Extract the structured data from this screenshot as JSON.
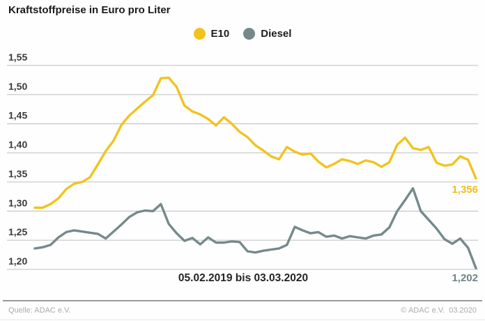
{
  "title": "Kraftstoffpreise in Euro pro Liter",
  "footer": {
    "source": "Quelle: ADAC e.V.",
    "copyright": "© ADAC e.V.  03.2020"
  },
  "chart_data": {
    "type": "line",
    "title": "Kraftstoffpreise in Euro pro Liter",
    "x_label": "05.02.2019 bis 03.03.2020",
    "x_note": "values sampled at equal (weekly) intervals from 05.02.2019 to 03.03.2020",
    "ylim": [
      1.2,
      1.55
    ],
    "grid": true,
    "grid_color": "#cbcbcb",
    "legend_position": "top-center",
    "y_axis": {
      "tick_values": [
        1.55,
        1.5,
        1.45,
        1.4,
        1.35,
        1.3,
        1.25,
        1.2
      ],
      "tick_labels": [
        "1,55",
        "1,50",
        "1,45",
        "1,40",
        "1,35",
        "1,30",
        "1,25",
        "1,20"
      ]
    },
    "series": [
      {
        "name": "E10",
        "color": "#F2C31E",
        "end_label": "1,356",
        "end_label_color": "#EDBE1A",
        "end_value": 1.356,
        "values": [
          1.306,
          1.306,
          1.312,
          1.322,
          1.338,
          1.347,
          1.35,
          1.358,
          1.38,
          1.403,
          1.421,
          1.448,
          1.464,
          1.476,
          1.488,
          1.499,
          1.528,
          1.529,
          1.513,
          1.481,
          1.471,
          1.466,
          1.458,
          1.447,
          1.461,
          1.45,
          1.436,
          1.427,
          1.413,
          1.404,
          1.394,
          1.389,
          1.41,
          1.402,
          1.397,
          1.399,
          1.385,
          1.375,
          1.381,
          1.389,
          1.386,
          1.381,
          1.387,
          1.384,
          1.376,
          1.384,
          1.414,
          1.426,
          1.408,
          1.405,
          1.41,
          1.383,
          1.378,
          1.38,
          1.394,
          1.388,
          1.356
        ]
      },
      {
        "name": "Diesel",
        "color": "#76898A",
        "end_label": "1,202",
        "end_label_color": "#6F8283",
        "end_value": 1.202,
        "values": [
          1.236,
          1.238,
          1.242,
          1.255,
          1.264,
          1.267,
          1.265,
          1.263,
          1.261,
          1.253,
          1.265,
          1.277,
          1.29,
          1.298,
          1.301,
          1.3,
          1.312,
          1.278,
          1.262,
          1.249,
          1.254,
          1.243,
          1.255,
          1.246,
          1.246,
          1.248,
          1.247,
          1.231,
          1.229,
          1.232,
          1.234,
          1.236,
          1.242,
          1.273,
          1.267,
          1.262,
          1.264,
          1.256,
          1.258,
          1.253,
          1.257,
          1.255,
          1.253,
          1.258,
          1.26,
          1.272,
          1.3,
          1.319,
          1.339,
          1.3,
          1.285,
          1.27,
          1.252,
          1.244,
          1.253,
          1.237,
          1.202
        ]
      }
    ]
  }
}
